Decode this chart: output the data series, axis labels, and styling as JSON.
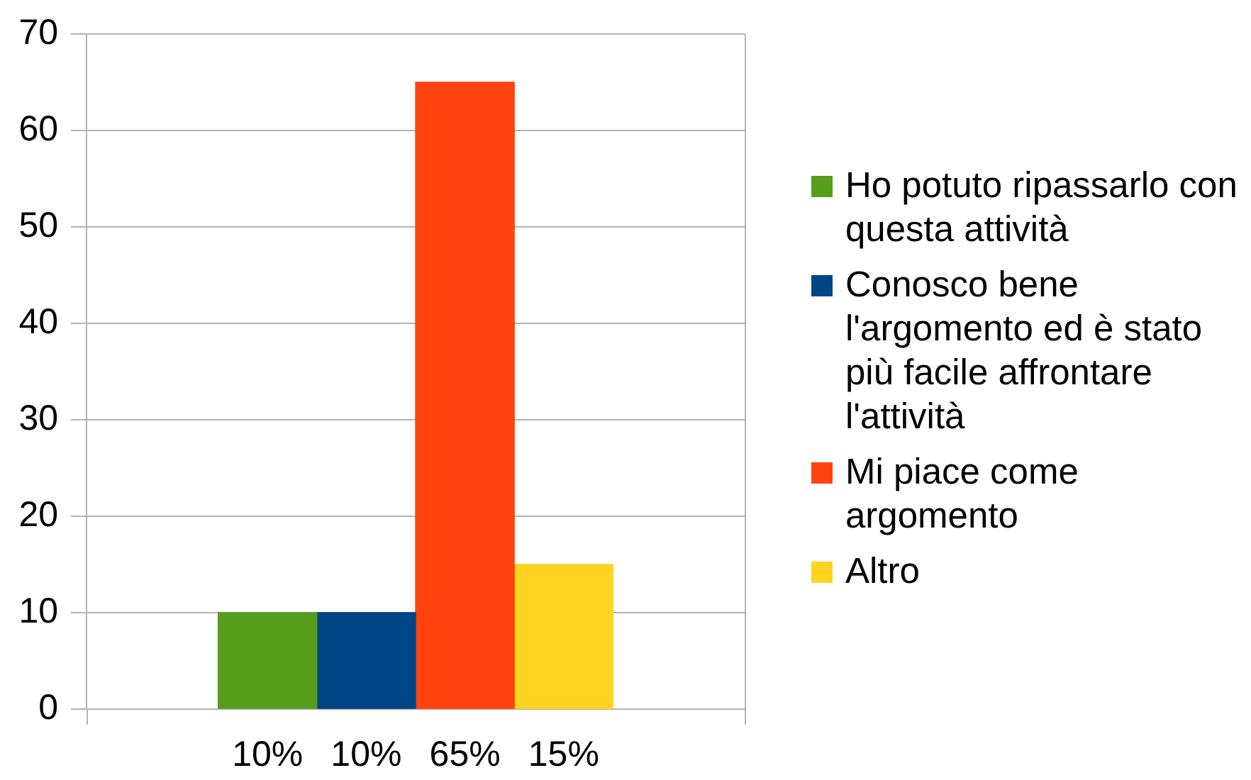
{
  "chart_data": {
    "type": "bar",
    "categories": [
      "10%",
      "10%",
      "65%",
      "15%"
    ],
    "series": [
      {
        "name": "Ho potuto ripassarlo con questa attività",
        "color": "#579d1c",
        "values": [
          10,
          null,
          null,
          null
        ]
      },
      {
        "name": "Conosco bene l'argomento ed è stato più facile affrontare l'attività",
        "color": "#004586",
        "values": [
          null,
          10,
          null,
          null
        ]
      },
      {
        "name": "Mi piace come argomento",
        "color": "#ff420e",
        "values": [
          null,
          null,
          65,
          null
        ]
      },
      {
        "name": "Altro",
        "color": "#ffd320",
        "values": [
          null,
          null,
          null,
          15
        ]
      }
    ],
    "ylim": [
      0,
      70
    ],
    "yticks": [
      0,
      10,
      20,
      30,
      40,
      50,
      60,
      70
    ],
    "grid": "y",
    "legend": "right"
  }
}
